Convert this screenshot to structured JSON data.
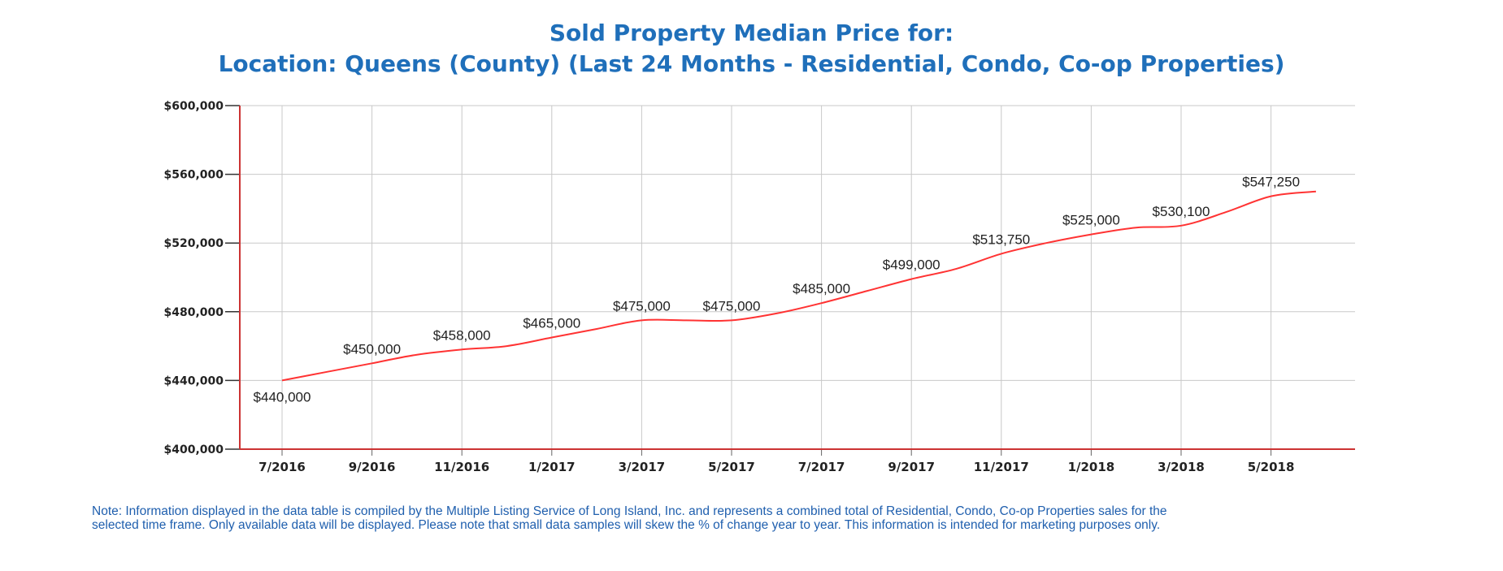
{
  "title": {
    "line1": "Sold Property Median Price for:",
    "line2": "Location: Queens (County) (Last 24 Months - Residential, Condo, Co-op Properties)"
  },
  "chart_data": {
    "type": "line",
    "x": [
      "7/2016",
      "8/2016",
      "9/2016",
      "10/2016",
      "11/2016",
      "12/2016",
      "1/2017",
      "2/2017",
      "3/2017",
      "4/2017",
      "5/2017",
      "6/2017",
      "7/2017",
      "8/2017",
      "9/2017",
      "10/2017",
      "11/2017",
      "12/2017",
      "1/2018",
      "2/2018",
      "3/2018",
      "4/2018",
      "5/2018",
      "6/2018"
    ],
    "series": [
      {
        "values": [
          440000,
          445000,
          450000,
          455000,
          458000,
          460000,
          465000,
          470000,
          475000,
          475000,
          475000,
          479000,
          485000,
          492000,
          499000,
          505000,
          513750,
          520000,
          525000,
          529000,
          530100,
          538000,
          547250,
          550000
        ]
      }
    ],
    "data_labels": [
      {
        "x": "7/2016",
        "text": "$440,000"
      },
      {
        "x": "9/2016",
        "text": "$450,000"
      },
      {
        "x": "11/2016",
        "text": "$458,000"
      },
      {
        "x": "1/2017",
        "text": "$465,000"
      },
      {
        "x": "3/2017",
        "text": "$475,000"
      },
      {
        "x": "5/2017",
        "text": "$475,000"
      },
      {
        "x": "7/2017",
        "text": "$485,000"
      },
      {
        "x": "9/2017",
        "text": "$499,000"
      },
      {
        "x": "11/2017",
        "text": "$513,750"
      },
      {
        "x": "1/2018",
        "text": "$525,000"
      },
      {
        "x": "3/2018",
        "text": "$530,100"
      },
      {
        "x": "5/2018",
        "text": "$547,250"
      }
    ],
    "x_tick_labels": [
      "7/2016",
      "9/2016",
      "11/2016",
      "1/2017",
      "3/2017",
      "5/2017",
      "7/2017",
      "9/2017",
      "11/2017",
      "1/2018",
      "3/2018",
      "5/2018"
    ],
    "y_tick_labels": [
      "$400,000",
      "$440,000",
      "$480,000",
      "$520,000",
      "$560,000",
      "$600,000"
    ],
    "y_ticks": [
      400000,
      440000,
      480000,
      520000,
      560000,
      600000
    ],
    "ylim": [
      400000,
      600000
    ],
    "xlabel": "",
    "ylabel": "",
    "grid": true,
    "legend": "none",
    "line_color": "#ff3333",
    "axis_color": "#cc3333",
    "grid_color": "#c8c8c8"
  },
  "note": {
    "line1": "Note: Information displayed in the data table is compiled by the Multiple  Listing Service of Long Island, Inc. and represents a combined total of Residential, Condo, Co-op Properties sales for the",
    "line2": "selected time frame. Only available data will be displayed. Please note that small data samples will skew the % of change year to year. This information is intended for marketing purposes only."
  }
}
